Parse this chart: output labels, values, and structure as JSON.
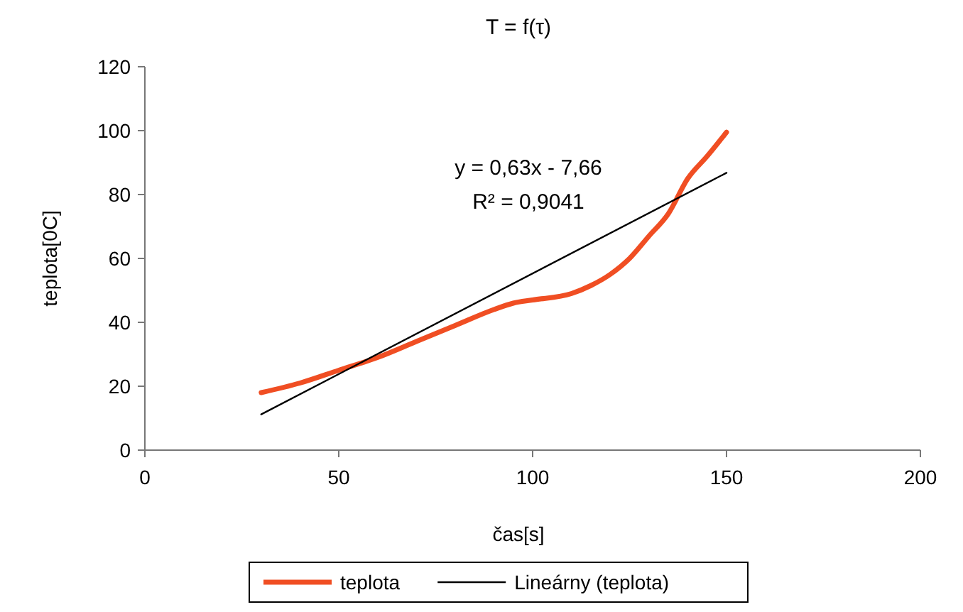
{
  "chart_data": {
    "type": "line",
    "title": "T = f(τ)",
    "xlabel": "čas[s]",
    "ylabel": "teplota[0C]",
    "xlim": [
      0,
      200
    ],
    "xticks": [
      0,
      50,
      100,
      150,
      200
    ],
    "ylim": [
      0,
      120
    ],
    "yticks": [
      0,
      20,
      40,
      60,
      80,
      100,
      120
    ],
    "series": [
      {
        "name": "teplota",
        "color": "#f04e23",
        "x": [
          30,
          40,
          50,
          60,
          70,
          80,
          90,
          95,
          100,
          110,
          115,
          120,
          125,
          130,
          135,
          140,
          145,
          150
        ],
        "values": [
          18,
          21,
          25,
          29,
          34,
          39,
          44,
          46,
          47,
          49,
          51.5,
          55,
          60,
          67,
          74,
          85,
          92,
          99.5
        ]
      },
      {
        "name": "Lineárny (teplota)",
        "color": "#000000",
        "x": [
          30,
          150
        ],
        "values": [
          11.2,
          86.8
        ]
      }
    ],
    "annotations": [
      "y = 0,63x - 7,66",
      "R² = 0,9041"
    ],
    "legend": "bottom",
    "grid": false
  }
}
